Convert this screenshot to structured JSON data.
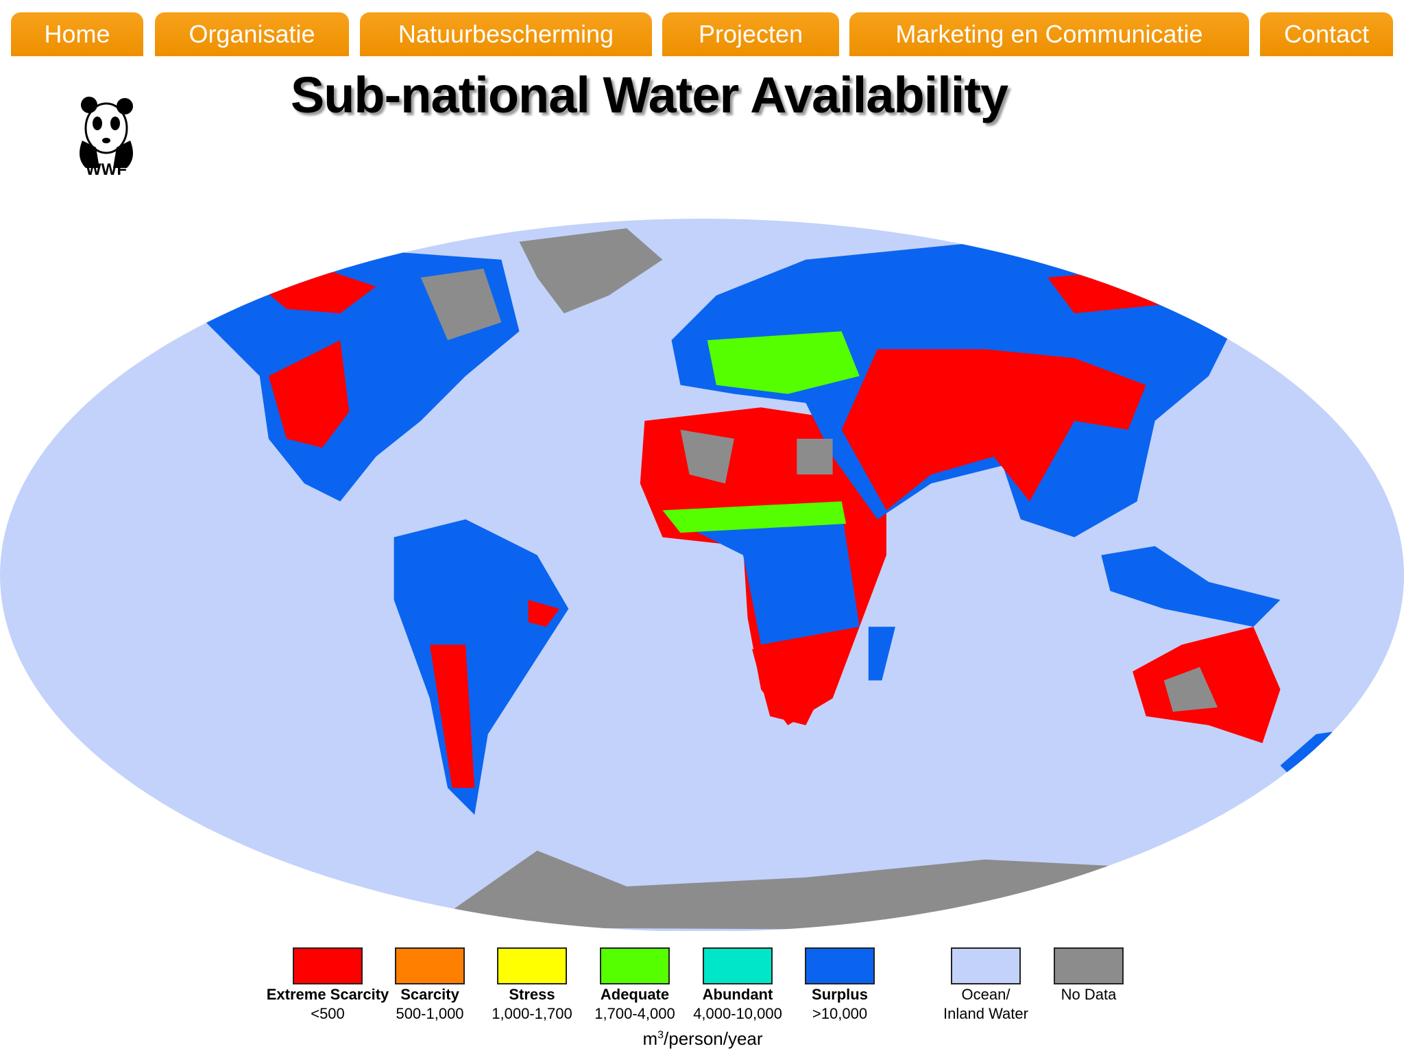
{
  "nav": [
    "Home",
    "Organisatie",
    "Natuurbescherming",
    "Projecten",
    "Marketing en Communicatie",
    "Contact"
  ],
  "logo": {
    "text": "WWF"
  },
  "title": "Sub-national Water Availability",
  "legend": {
    "items": [
      {
        "title": "Extreme Scarcity",
        "range": "<500",
        "color": "#ff0000",
        "bold": true
      },
      {
        "title": "Scarcity",
        "range": "500-1,000",
        "color": "#ff7f00",
        "bold": true
      },
      {
        "title": "Stress",
        "range": "1,000-1,700",
        "color": "#ffff00",
        "bold": true
      },
      {
        "title": "Adequate",
        "range": "1,700-4,000",
        "color": "#55ff00",
        "bold": true
      },
      {
        "title": "Abundant",
        "range": "4,000-10,000",
        "color": "#00e6c8",
        "bold": true
      },
      {
        "title": "Surplus",
        "range": ">10,000",
        "color": "#0a64f0",
        "bold": true
      },
      {
        "title": "Ocean/",
        "range": "Inland Water",
        "color": "#c3d2fa",
        "bold": false
      },
      {
        "title": "No Data",
        "color": "#8c8c8c",
        "bold": false
      }
    ],
    "unit": {
      "base": "m",
      "sup": "3",
      "rest": "/person/year"
    }
  }
}
